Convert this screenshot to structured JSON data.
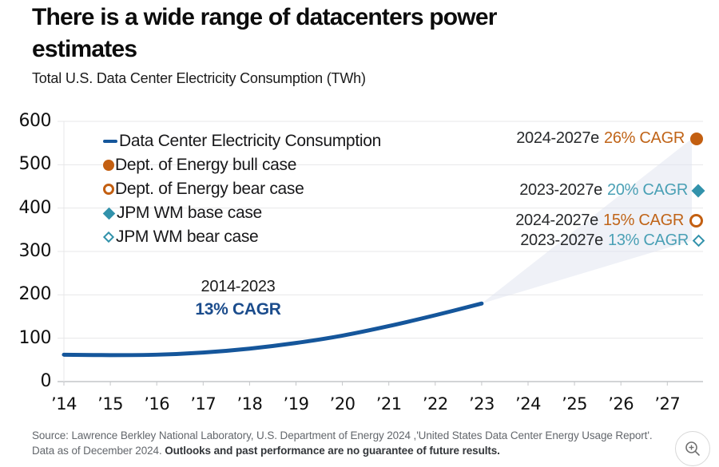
{
  "colors": {
    "line": "#15569b",
    "orange": "#c35f11",
    "orange_text": "#c06418",
    "teal": "#3292ab",
    "teal_text": "#4aa0b5",
    "navy_annotation": "#1b4c8c",
    "fan": "#dfe4f0",
    "grid": "#e7e7e9",
    "axis": "#c4c6c9"
  },
  "header": {
    "title_line1": "There is a wide range of datacenters power",
    "title_line2": "estimates",
    "subtitle": "Total U.S. Data Center Electricity Consumption (TWh)"
  },
  "legend": {
    "items": [
      {
        "label": "Data Center Electricity Consumption",
        "symbol": "line-dash",
        "color": "#15569b"
      },
      {
        "label": "Dept. of Energy bull case",
        "symbol": "circle-filled",
        "color": "#c35f11"
      },
      {
        "label": "Dept. of Energy bear case",
        "symbol": "circle-open",
        "color": "#c35f11"
      },
      {
        "label": "JPM WM base case",
        "symbol": "diamond-filled",
        "color": "#3292ab"
      },
      {
        "label": "JPM WM bear case",
        "symbol": "diamond-open",
        "color": "#3292ab"
      }
    ]
  },
  "chart_data": {
    "type": "line",
    "title": "Total U.S. Data Center Electricity Consumption (TWh)",
    "ylabel": "TWh",
    "ylim": [
      0,
      600
    ],
    "yticks": [
      0,
      100,
      200,
      300,
      400,
      500,
      600
    ],
    "xticks": [
      "’14",
      "’15",
      "’16",
      "’17",
      "’18",
      "’19",
      "’20",
      "’21",
      "’22",
      "’23",
      "’24",
      "’25",
      "’26",
      "’27"
    ],
    "years": [
      2014,
      2015,
      2016,
      2017,
      2018,
      2019,
      2020,
      2021,
      2022,
      2023
    ],
    "series": [
      {
        "name": "Data Center Electricity Consumption",
        "values": [
          62,
          61,
          62,
          67,
          76,
          89,
          106,
          128,
          153,
          180
        ]
      }
    ],
    "historical_cagr": {
      "period": "2014-2023",
      "cagr": "13% CAGR"
    },
    "point_estimates": [
      {
        "name": "Dept. of Energy bull case",
        "period": "2024-2027e",
        "cagr": "26% CAGR",
        "value": 560,
        "marker": "circle-filled",
        "palette": "orange"
      },
      {
        "name": "JPM WM base case",
        "period": "2023-2027e",
        "cagr": "20% CAGR",
        "value": 440,
        "marker": "diamond-filled",
        "palette": "teal"
      },
      {
        "name": "Dept. of Energy bear case",
        "period": "2024-2027e",
        "cagr": "15% CAGR",
        "value": 370,
        "marker": "circle-open",
        "palette": "orange"
      },
      {
        "name": "JPM WM bear case",
        "period": "2023-2027e",
        "cagr": "13% CAGR",
        "value": 325,
        "marker": "diamond-open",
        "palette": "teal"
      }
    ],
    "projection_fan": {
      "from_year": 2023,
      "upper_value": 560,
      "lower_value": 325
    },
    "grid": true,
    "legend_position": "top-left"
  },
  "footer": {
    "source_line1": "Source: Lawrence Berkley National Laboratory, U.S. Department of Energy 2024 ,'United States Data Center Energy Usage Report'.",
    "source_line2_regular": "Data as of December 2024. ",
    "source_line2_bold": "Outlooks and past performance are no guarantee of future results.",
    "zoom_icon": "zoom-in"
  }
}
